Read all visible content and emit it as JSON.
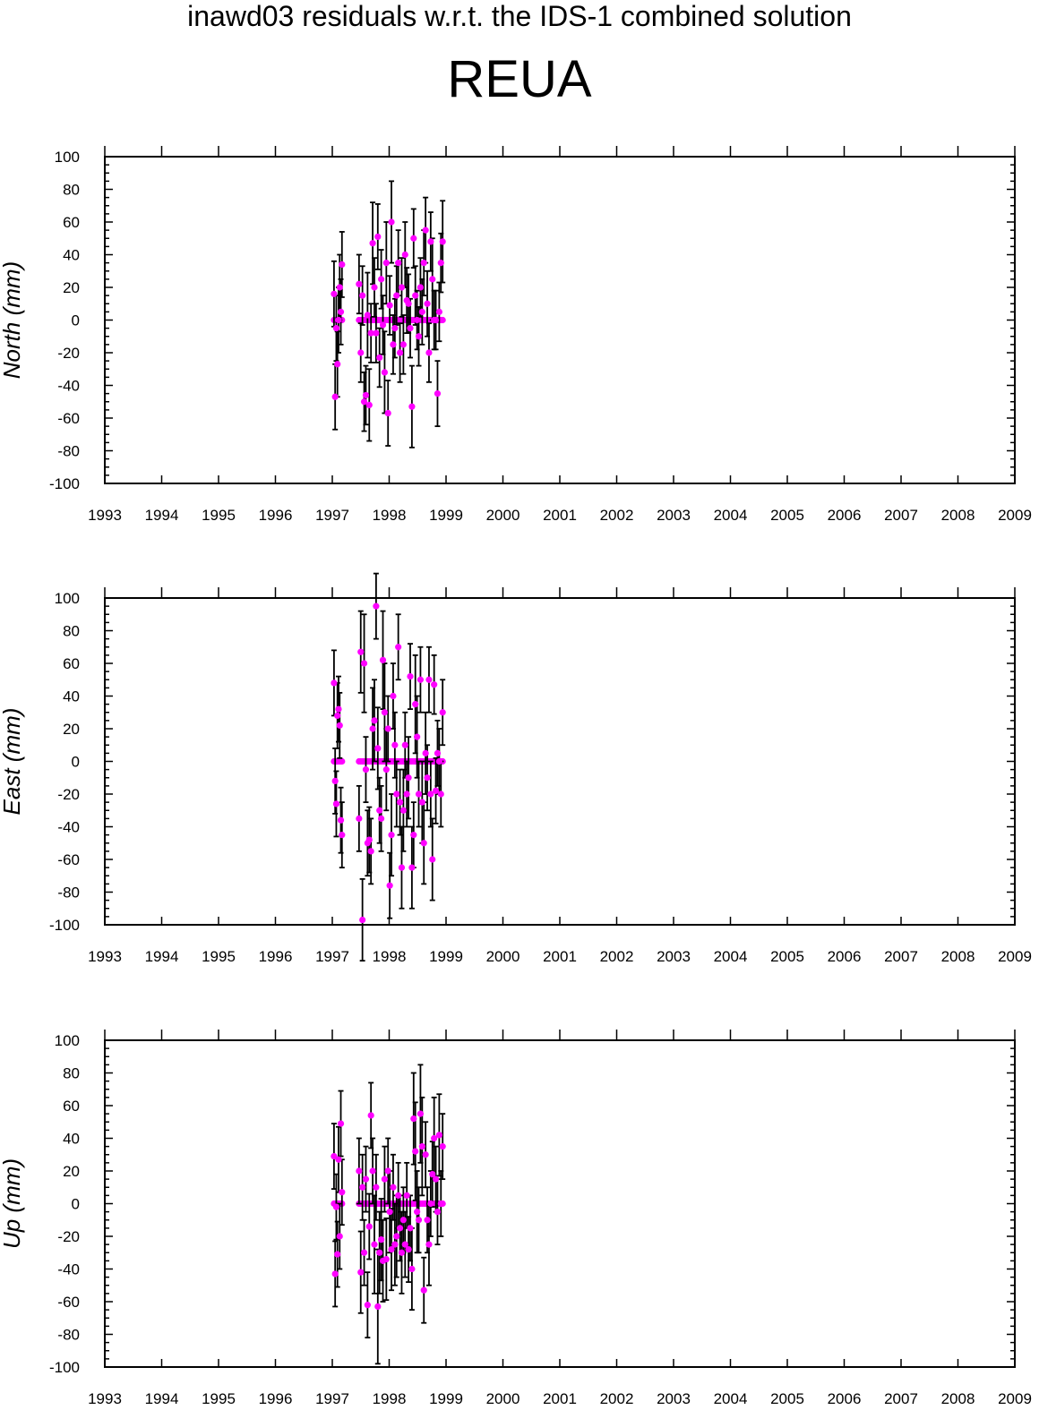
{
  "header": {
    "title": "inawd03 residuals w.r.t. the IDS-1 combined solution",
    "station": "REUA"
  },
  "colors": {
    "point": "#ff00ff",
    "errorbar": "#000000",
    "axis": "#000000"
  },
  "chart_data": [
    {
      "type": "scatter",
      "ylabel": "North (mm)",
      "xlim": [
        1993,
        2009
      ],
      "ylim": [
        -100,
        100
      ],
      "x_ticks": [
        1993,
        1994,
        1995,
        1996,
        1997,
        1998,
        1999,
        2000,
        2001,
        2002,
        2003,
        2004,
        2005,
        2006,
        2007,
        2008,
        2009
      ],
      "y_ticks": [
        -100,
        -80,
        -60,
        -40,
        -20,
        0,
        20,
        40,
        60,
        80,
        100
      ],
      "grid": false,
      "error_bars": true,
      "series": [
        {
          "x": [
            1997.03,
            1997.05,
            1997.07,
            1997.09,
            1997.11,
            1997.13,
            1997.15,
            1997.17,
            1997.47,
            1997.5,
            1997.53,
            1997.56,
            1997.59,
            1997.62,
            1997.65,
            1997.68,
            1997.71,
            1997.74,
            1997.77,
            1997.8,
            1997.83,
            1997.86,
            1997.89,
            1997.92,
            1997.95,
            1997.98,
            1998.01,
            1998.04,
            1998.07,
            1998.1,
            1998.13,
            1998.16,
            1998.19,
            1998.22,
            1998.25,
            1998.28,
            1998.31,
            1998.34,
            1998.37,
            1998.4,
            1998.43,
            1998.46,
            1998.49,
            1998.52,
            1998.55,
            1998.58,
            1998.61,
            1998.64,
            1998.67,
            1998.7,
            1998.73,
            1998.76,
            1998.79,
            1998.82,
            1998.85,
            1998.88,
            1998.91,
            1998.94
          ],
          "y": [
            16,
            -47,
            -5,
            -27,
            0,
            20,
            5,
            34,
            22,
            -20,
            15,
            -50,
            -46,
            3,
            -52,
            -8,
            47,
            20,
            -8,
            51,
            -23,
            25,
            -3,
            -32,
            35,
            -57,
            9,
            60,
            -15,
            -5,
            15,
            35,
            -20,
            20,
            -15,
            40,
            12,
            10,
            -5,
            -53,
            50,
            15,
            0,
            -10,
            20,
            5,
            35,
            55,
            10,
            -20,
            48,
            25,
            0,
            0,
            -45,
            5,
            35,
            48
          ],
          "err": [
            20,
            20,
            20,
            20,
            20,
            20,
            20,
            20,
            18,
            18,
            18,
            18,
            18,
            26,
            22,
            18,
            25,
            18,
            18,
            20,
            18,
            18,
            18,
            25,
            25,
            20,
            18,
            25,
            18,
            18,
            18,
            20,
            18,
            18,
            18,
            20,
            20,
            18,
            18,
            25,
            18,
            18,
            18,
            18,
            18,
            20,
            20,
            20,
            20,
            18,
            18,
            25,
            18,
            18,
            20,
            18,
            18,
            25
          ]
        }
      ]
    },
    {
      "type": "scatter",
      "ylabel": "East (mm)",
      "xlim": [
        1993,
        2009
      ],
      "ylim": [
        -100,
        100
      ],
      "x_ticks": [
        1993,
        1994,
        1995,
        1996,
        1997,
        1998,
        1999,
        2000,
        2001,
        2002,
        2003,
        2004,
        2005,
        2006,
        2007,
        2008,
        2009
      ],
      "y_ticks": [
        -100,
        -80,
        -60,
        -40,
        -20,
        0,
        20,
        40,
        60,
        80,
        100
      ],
      "grid": false,
      "error_bars": true,
      "series": [
        {
          "x": [
            1997.03,
            1997.05,
            1997.07,
            1997.09,
            1997.11,
            1997.13,
            1997.15,
            1997.17,
            1997.47,
            1997.5,
            1997.53,
            1997.56,
            1997.59,
            1997.62,
            1997.65,
            1997.68,
            1997.71,
            1997.74,
            1997.77,
            1997.8,
            1997.83,
            1997.86,
            1997.89,
            1997.92,
            1997.95,
            1997.98,
            1998.01,
            1998.04,
            1998.07,
            1998.1,
            1998.13,
            1998.16,
            1998.19,
            1998.22,
            1998.25,
            1998.28,
            1998.31,
            1998.34,
            1998.37,
            1998.4,
            1998.43,
            1998.46,
            1998.49,
            1998.52,
            1998.55,
            1998.58,
            1998.61,
            1998.64,
            1998.67,
            1998.7,
            1998.73,
            1998.76,
            1998.79,
            1998.82,
            1998.85,
            1998.88,
            1998.91,
            1998.94
          ],
          "y": [
            48,
            -12,
            -26,
            28,
            32,
            22,
            -36,
            -45,
            -35,
            67,
            -97,
            60,
            -5,
            -50,
            -48,
            -55,
            20,
            25,
            95,
            8,
            -30,
            -35,
            62,
            30,
            -5,
            20,
            -76,
            -45,
            40,
            10,
            -20,
            70,
            -25,
            -65,
            -30,
            10,
            -20,
            -10,
            52,
            -65,
            -45,
            35,
            15,
            -20,
            50,
            -25,
            -50,
            5,
            -10,
            50,
            -20,
            -60,
            47,
            -18,
            5,
            0,
            -20,
            30
          ],
          "err": [
            20,
            20,
            20,
            20,
            20,
            20,
            20,
            20,
            20,
            25,
            25,
            30,
            20,
            20,
            20,
            20,
            25,
            25,
            20,
            25,
            20,
            20,
            30,
            30,
            25,
            20,
            20,
            25,
            20,
            20,
            20,
            20,
            20,
            25,
            25,
            20,
            20,
            25,
            20,
            25,
            20,
            30,
            25,
            20,
            20,
            25,
            25,
            25,
            20,
            20,
            20,
            25,
            18,
            20,
            20,
            20,
            20,
            20
          ]
        }
      ]
    },
    {
      "type": "scatter",
      "ylabel": "Up (mm)",
      "xlim": [
        1993,
        2009
      ],
      "ylim": [
        -100,
        100
      ],
      "x_ticks": [
        1993,
        1994,
        1995,
        1996,
        1997,
        1998,
        1999,
        2000,
        2001,
        2002,
        2003,
        2004,
        2005,
        2006,
        2007,
        2008,
        2009
      ],
      "y_ticks": [
        -100,
        -80,
        -60,
        -40,
        -20,
        0,
        20,
        40,
        60,
        80,
        100
      ],
      "grid": false,
      "error_bars": true,
      "series": [
        {
          "x": [
            1997.03,
            1997.05,
            1997.07,
            1997.09,
            1997.11,
            1997.13,
            1997.15,
            1997.17,
            1997.47,
            1997.5,
            1997.53,
            1997.56,
            1997.59,
            1997.62,
            1997.65,
            1997.68,
            1997.71,
            1997.74,
            1997.77,
            1997.8,
            1997.83,
            1997.86,
            1997.89,
            1997.92,
            1997.95,
            1997.98,
            1998.01,
            1998.04,
            1998.07,
            1998.1,
            1998.13,
            1998.16,
            1998.19,
            1998.22,
            1998.25,
            1998.28,
            1998.31,
            1998.34,
            1998.37,
            1998.4,
            1998.43,
            1998.46,
            1998.49,
            1998.52,
            1998.55,
            1998.58,
            1998.61,
            1998.64,
            1998.67,
            1998.7,
            1998.73,
            1998.76,
            1998.79,
            1998.82,
            1998.85,
            1998.88,
            1998.91,
            1998.94
          ],
          "y": [
            29,
            -43,
            -2,
            -31,
            27,
            -20,
            49,
            7,
            20,
            -42,
            10,
            -30,
            15,
            -62,
            -14,
            54,
            20,
            -25,
            10,
            -63,
            -30,
            -22,
            -35,
            15,
            -34,
            20,
            -5,
            -28,
            10,
            -25,
            -20,
            5,
            -15,
            -30,
            -10,
            -25,
            5,
            -28,
            -15,
            -40,
            52,
            32,
            -5,
            -10,
            55,
            35,
            -53,
            30,
            -10,
            -25,
            0,
            18,
            40,
            15,
            -5,
            42,
            0,
            35
          ],
          "err": [
            20,
            20,
            20,
            20,
            20,
            20,
            20,
            20,
            20,
            25,
            20,
            20,
            20,
            20,
            20,
            20,
            20,
            30,
            20,
            35,
            25,
            25,
            25,
            20,
            25,
            20,
            25,
            25,
            20,
            25,
            25,
            20,
            20,
            25,
            20,
            20,
            20,
            20,
            20,
            25,
            28,
            30,
            25,
            20,
            30,
            30,
            20,
            20,
            20,
            25,
            20,
            20,
            25,
            20,
            20,
            25,
            20,
            20
          ]
        }
      ]
    }
  ]
}
